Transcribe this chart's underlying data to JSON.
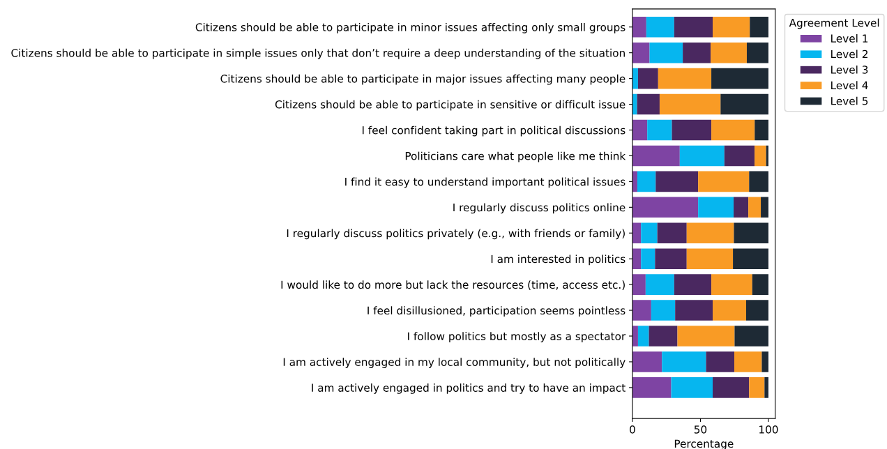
{
  "chart_data": {
    "type": "bar",
    "orientation": "horizontal",
    "stacked": true,
    "xlabel": "Percentage",
    "legend_title": "Agreement Level",
    "legend": "top right",
    "xlim": [
      0,
      105
    ],
    "xticks": [
      0,
      50,
      100
    ],
    "categories": [
      "Citizens should be able to participate in minor issues affecting only small groups",
      "Citizens should be able to participate in simple issues only that don’t require a deep understanding of the situation",
      "Citizens should be able to participate in major issues affecting many people",
      "Citizens should be able to participate in sensitive or difficult issue",
      "I feel confident taking part in political discussions",
      "Politicians care what people like me think",
      "I find it easy to understand important political issues",
      "I regularly discuss politics online",
      "I regularly discuss politics privately (e.g., with friends or family)",
      "I am interested in politics",
      "I would like to do more but lack the resources (time, access etc.)",
      "I feel disillusioned, participation seems pointless",
      "I follow politics but mostly as a spectator",
      "I am actively engaged in my local community, but not politically",
      "I am actively engaged in politics and try to have an impact"
    ],
    "series": [
      {
        "name": "Level 1",
        "color": "#7e44a3",
        "values": [
          10.2,
          12.6,
          null,
          0,
          10.9,
          34.8,
          3.6,
          48.3,
          6.3,
          6.3,
          9.7,
          13.8,
          4.1,
          21.7,
          28.5
        ]
      },
      {
        "name": "Level 2",
        "color": "#06b6ef",
        "values": [
          20.5,
          24.4,
          4.1,
          3.4,
          18.1,
          32.8,
          13.5,
          26.1,
          12.0,
          10.3,
          21.0,
          17.6,
          8.0,
          32.4,
          30.5
        ]
      },
      {
        "name": "Level 3",
        "color": "#4a2860",
        "values": [
          28.3,
          20.5,
          14.8,
          16.6,
          29.0,
          22.2,
          31.2,
          10.8,
          21.6,
          23.3,
          27.3,
          27.6,
          21.0,
          20.8,
          26.8
        ]
      },
      {
        "name": "Level 4",
        "color": "#f99b25",
        "values": [
          27.3,
          26.6,
          39.1,
          44.8,
          31.9,
          8.5,
          37.5,
          9.2,
          34.7,
          34.0,
          30.1,
          24.6,
          42.0,
          20.2,
          11.3
        ]
      },
      {
        "name": "Level 5",
        "color": "#1e2a35",
        "values": [
          13.7,
          15.9,
          42.0,
          35.2,
          10.1,
          1.7,
          14.2,
          5.6,
          25.4,
          26.1,
          11.9,
          16.4,
          24.9,
          4.9,
          2.9
        ]
      }
    ]
  }
}
